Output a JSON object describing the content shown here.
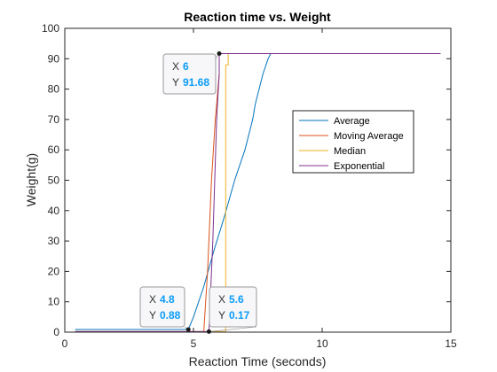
{
  "chart_data": {
    "type": "line",
    "title": "Reaction time vs. Weight",
    "xlabel": "Reaction Time (seconds)",
    "ylabel": "Weight(g)",
    "xlim": [
      0,
      15
    ],
    "ylim": [
      0,
      100
    ],
    "x_ticks": [
      "0",
      "5",
      "10",
      "15"
    ],
    "y_ticks": [
      "0",
      "10",
      "20",
      "30",
      "40",
      "50",
      "60",
      "70",
      "80",
      "90",
      "100"
    ],
    "grid": false,
    "legend_position": "right",
    "series": [
      {
        "name": "Average",
        "color": "#0072BD",
        "x": [
          0.4,
          4.8,
          5.0,
          5.4,
          5.8,
          6.2,
          6.6,
          7.0,
          7.3,
          7.4,
          7.7,
          7.9,
          8.0,
          14.6
        ],
        "y": [
          0.88,
          0.88,
          5,
          15,
          27,
          38,
          50,
          60,
          70,
          75,
          85,
          90,
          91.68,
          91.68
        ]
      },
      {
        "name": "Moving Average",
        "color": "#D95319",
        "x": [
          0.4,
          5.4,
          5.55,
          5.7,
          5.85,
          6.0,
          6.0,
          14.6
        ],
        "y": [
          0.17,
          0.17,
          20,
          50,
          70,
          85,
          91.68,
          91.68
        ]
      },
      {
        "name": "Median",
        "color": "#EDB120",
        "x": [
          0.4,
          6.25,
          6.25,
          6.35,
          6.35,
          14.6
        ],
        "y": [
          0.17,
          0.17,
          88,
          88,
          91.68,
          91.68
        ]
      },
      {
        "name": "Exponential",
        "color": "#7E2F8E",
        "x": [
          0.4,
          5.6,
          5.75,
          5.9,
          6.0,
          6.0,
          14.6
        ],
        "y": [
          0.17,
          0.17,
          30,
          70,
          85,
          91.68,
          91.68
        ]
      }
    ],
    "datatips": [
      {
        "x": 6,
        "y": 91.68,
        "x_label": "X",
        "y_label": "Y",
        "x_text": "6",
        "y_text": "91.68"
      },
      {
        "x": 4.8,
        "y": 0.88,
        "x_label": "X",
        "y_label": "Y",
        "x_text": "4.8",
        "y_text": "0.88"
      },
      {
        "x": 5.6,
        "y": 0.17,
        "x_label": "X",
        "y_label": "Y",
        "x_text": "5.6",
        "y_text": "0.17"
      }
    ]
  }
}
